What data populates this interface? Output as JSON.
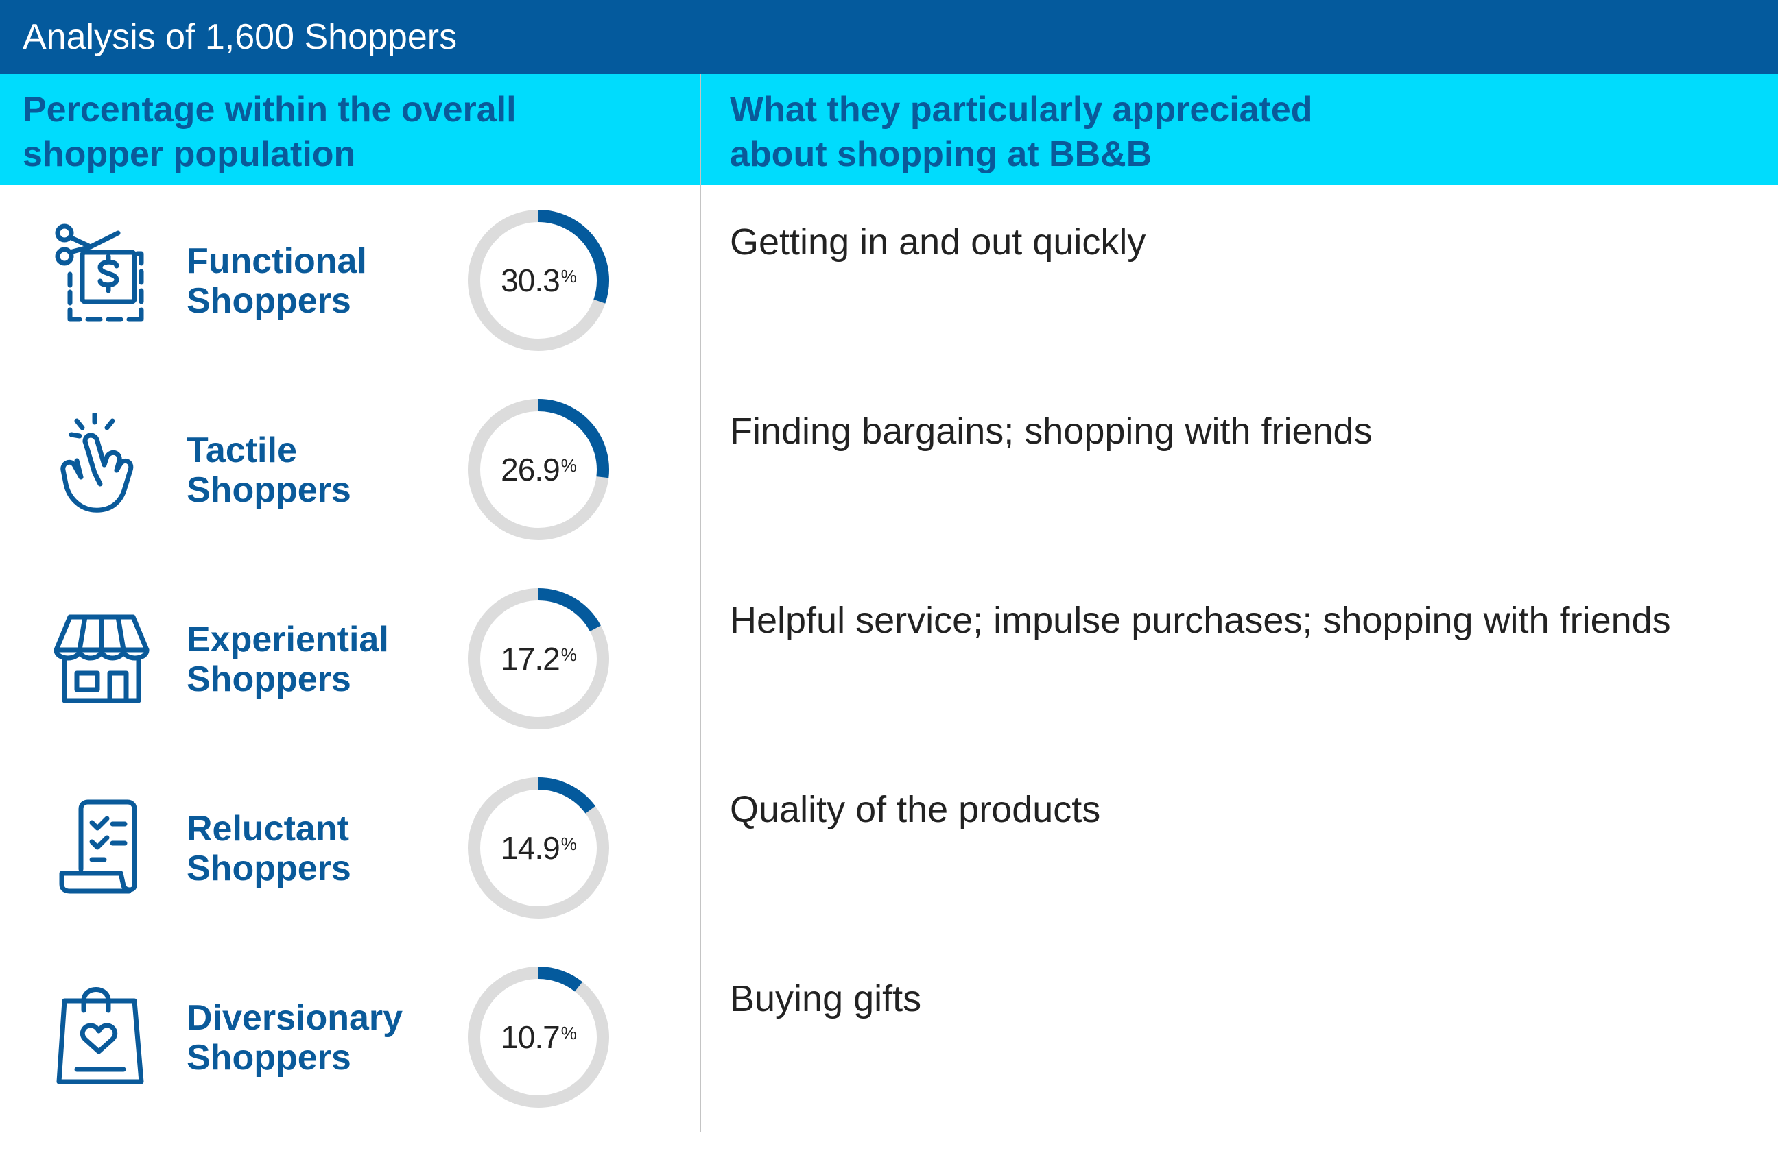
{
  "title": "Analysis of 1,600 Shoppers",
  "headers": {
    "left_line1": "Percentage within the overall",
    "left_line2": "shopper population",
    "right_line1": "What they particularly appreciated",
    "right_line2": "about shopping at BB&B"
  },
  "colors": {
    "title_bg": "#045a9d",
    "header_bg": "#00dcfd",
    "accent": "#0a5a9a",
    "donut_track": "#dcdcdc"
  },
  "rows": [
    {
      "name_line1": "Functional",
      "name_line2": "Shoppers",
      "percent": "30.3",
      "pct_symbol": "%",
      "appreciated": "Getting in and out quickly",
      "icon": "price-tag-cut-icon"
    },
    {
      "name_line1": "Tactile",
      "name_line2": "Shoppers",
      "percent": "26.9",
      "pct_symbol": "%",
      "appreciated": "Finding bargains; shopping with friends",
      "icon": "touch-hand-icon"
    },
    {
      "name_line1": "Experiential",
      "name_line2": "Shoppers",
      "percent": "17.2",
      "pct_symbol": "%",
      "appreciated": "Helpful service; impulse purchases; shopping with friends",
      "icon": "storefront-icon"
    },
    {
      "name_line1": "Reluctant",
      "name_line2": "Shoppers",
      "percent": "14.9",
      "pct_symbol": "%",
      "appreciated": "Quality of the products",
      "icon": "checklist-icon"
    },
    {
      "name_line1": "Diversionary",
      "name_line2": "Shoppers",
      "percent": "10.7",
      "pct_symbol": "%",
      "appreciated": "Buying gifts",
      "icon": "gift-bag-heart-icon"
    }
  ],
  "chart_data": {
    "type": "pie",
    "title": "Analysis of 1,600 Shoppers",
    "categories": [
      "Functional Shoppers",
      "Tactile Shoppers",
      "Experiential Shoppers",
      "Reluctant Shoppers",
      "Diversionary Shoppers"
    ],
    "values": [
      30.3,
      26.9,
      17.2,
      14.9,
      10.7
    ],
    "unit": "%"
  }
}
